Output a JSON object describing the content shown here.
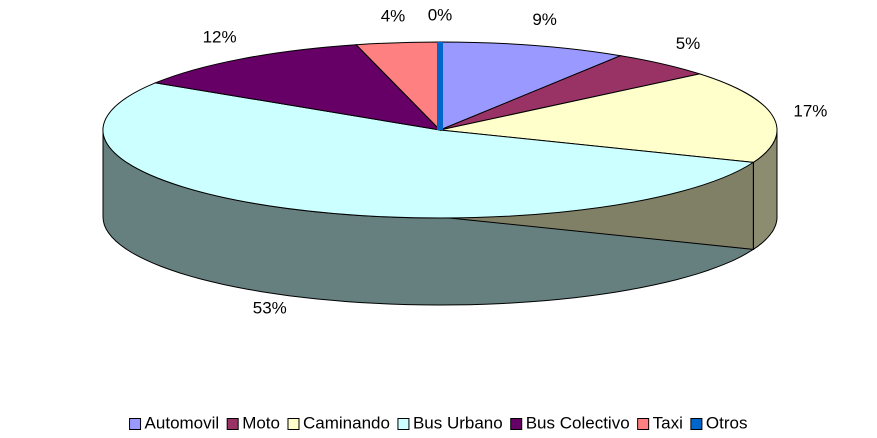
{
  "chart_data": {
    "type": "pie3d",
    "categories": [
      "Automovil",
      "Moto",
      "Caminando",
      "Bus Urbano",
      "Bus Colectivo",
      "Taxi",
      "Otros"
    ],
    "values": [
      9,
      5,
      17,
      53,
      12,
      4,
      0
    ],
    "value_labels": [
      "9%",
      "5%",
      "17%",
      "53%",
      "12%",
      "4%",
      "0%"
    ],
    "colors": [
      "#9999ff",
      "#993366",
      "#ffffcc",
      "#ccffff",
      "#660066",
      "#ff8080",
      "#0066cc"
    ],
    "legend": "bottom"
  }
}
